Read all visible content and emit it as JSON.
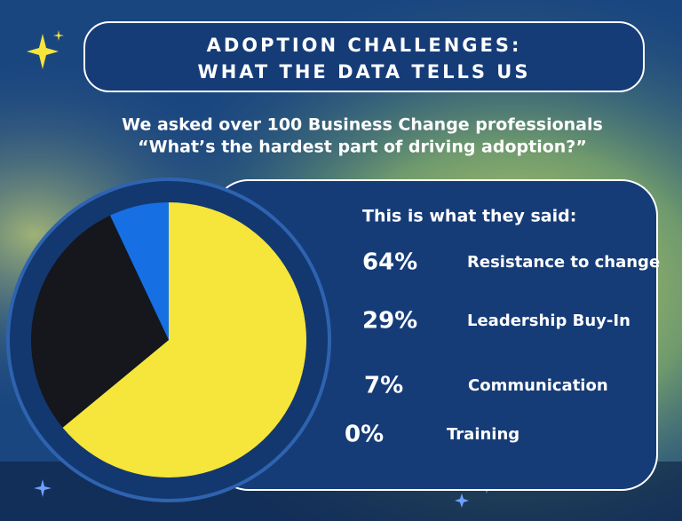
{
  "chart_data": {
    "type": "pie",
    "title": [
      "ADOPTION CHALLENGES:",
      "WHAT THE DATA TELLS US"
    ],
    "subtitle": [
      "We asked over 100 Business Change professionals",
      "“What’s the hardest part of driving adoption?”"
    ],
    "legend_title": "This is what they said:",
    "categories": [
      "Resistance to change",
      "Leadership Buy-In",
      "Communication",
      "Training"
    ],
    "values": [
      64,
      29,
      7,
      0
    ],
    "value_labels": [
      "64%",
      "29%",
      "7%",
      "0%"
    ],
    "colors": [
      "#f6e53a",
      "#15171d",
      "#1670e3",
      "#9aa8c0"
    ]
  }
}
